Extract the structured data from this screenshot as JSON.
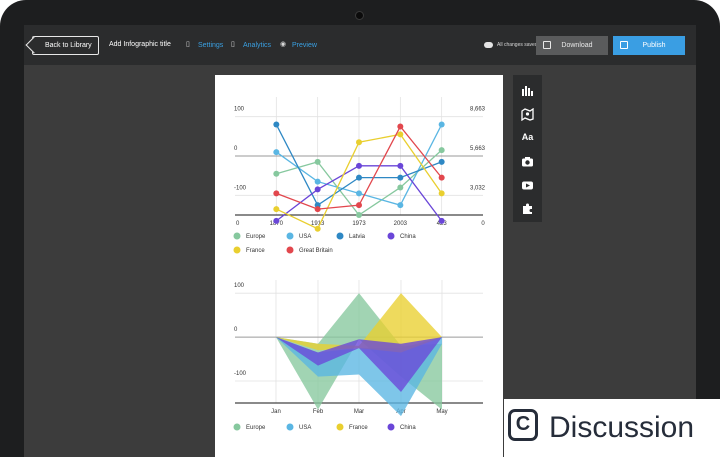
{
  "header": {
    "back_label": "Back to Library",
    "title": "Add Infographic title",
    "nav": [
      {
        "label": "Settings",
        "icon": "file-icon"
      },
      {
        "label": "Analytics",
        "icon": "file-icon"
      },
      {
        "label": "Preview",
        "icon": "eye-icon"
      }
    ],
    "saved_status": "All changes saved",
    "download_label": "Download",
    "publish_label": "Publish"
  },
  "tools": [
    "bar-chart-icon",
    "map-icon",
    "text-icon",
    "camera-icon",
    "video-icon",
    "puzzle-icon"
  ],
  "tool_text_label": "Aa",
  "watermark": {
    "letter": "C",
    "text": "Discussion"
  },
  "colors": {
    "Europe": "#86c89e",
    "USA": "#5ab6e3",
    "Latvia": "#2e88c4",
    "China": "#6a46d8",
    "France": "#e9cf2f",
    "Great Britain": "#e2474d"
  },
  "chart_data": [
    {
      "type": "line",
      "categories": [
        "0",
        "1870",
        "1913",
        "1973",
        "2003",
        "423",
        "0"
      ],
      "y_left_ticks": [
        "100",
        "0",
        "-100"
      ],
      "y_right_ticks": [
        "8,663",
        "5,663",
        "3,032"
      ],
      "ylim": [
        -150,
        150
      ],
      "grid": true,
      "legend_position": "bottom",
      "series": [
        {
          "name": "Europe",
          "values": [
            null,
            -45,
            -15,
            -150,
            -80,
            15,
            null
          ]
        },
        {
          "name": "USA",
          "values": [
            null,
            10,
            -65,
            -95,
            -125,
            80,
            null
          ]
        },
        {
          "name": "Latvia",
          "values": [
            null,
            80,
            -125,
            -55,
            -55,
            -15,
            null
          ]
        },
        {
          "name": "China",
          "values": [
            null,
            -165,
            -85,
            -25,
            -25,
            -165,
            null
          ]
        },
        {
          "name": "France",
          "values": [
            null,
            -135,
            -185,
            35,
            55,
            -95,
            null
          ]
        },
        {
          "name": "Great Britain",
          "values": [
            null,
            -95,
            -135,
            -125,
            75,
            -55,
            null
          ]
        }
      ]
    },
    {
      "type": "area",
      "categories": [
        "Jan",
        "Feb",
        "Mar",
        "Apr",
        "May"
      ],
      "y_ticks": [
        "100",
        "0",
        "-100"
      ],
      "ylim": [
        -150,
        130
      ],
      "grid": true,
      "legend_position": "bottom",
      "series": [
        {
          "name": "Europe",
          "upper": [
            0,
            -15,
            100,
            -20,
            -15
          ],
          "lower": [
            0,
            -165,
            -5,
            -90,
            -165
          ]
        },
        {
          "name": "USA",
          "upper": [
            0,
            -35,
            -25,
            -25,
            0
          ],
          "lower": [
            0,
            -90,
            -85,
            -180,
            -15
          ]
        },
        {
          "name": "France",
          "upper": [
            0,
            -15,
            -20,
            100,
            0
          ],
          "lower": [
            0,
            -30,
            -25,
            -35,
            0
          ]
        },
        {
          "name": "China",
          "upper": [
            0,
            -35,
            -5,
            -15,
            0
          ],
          "lower": [
            0,
            -65,
            -25,
            -125,
            0
          ]
        }
      ]
    }
  ]
}
